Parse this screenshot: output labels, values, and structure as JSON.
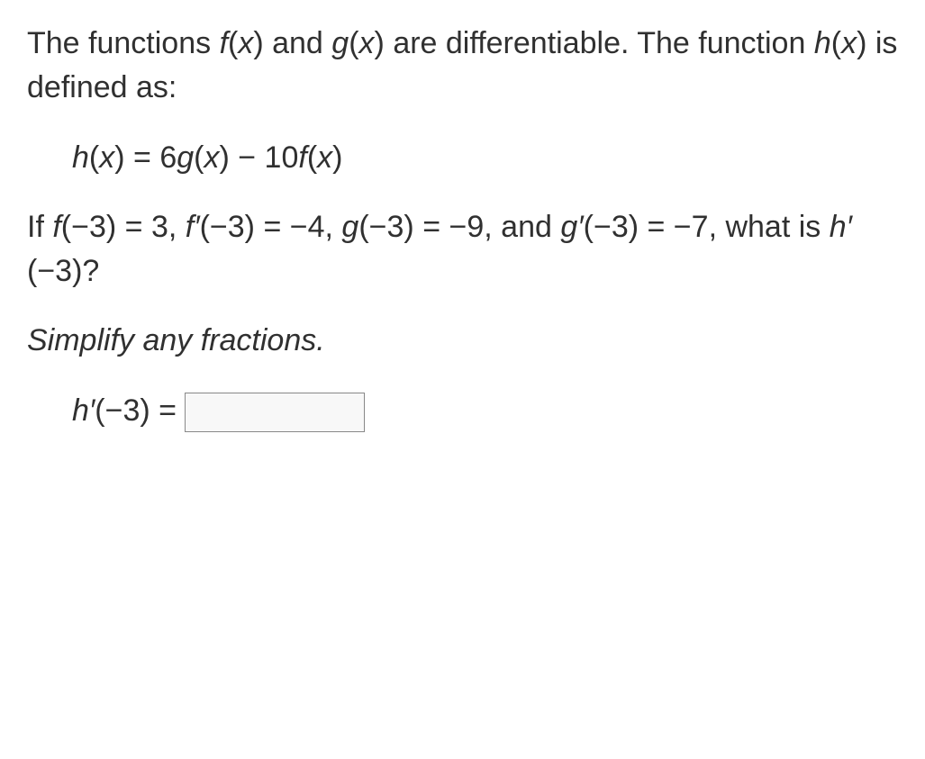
{
  "intro": {
    "line1_html": "The functions <span class=\"ital\">f</span>(<span class=\"ital\">x</span>) and <span class=\"ital\">g</span>(<span class=\"ital\">x</span>) are differentiable. The function <span class=\"ital\">h</span>(<span class=\"ital\">x</span>) is defined as:"
  },
  "definition": {
    "html": "<span class=\"ital\">h</span>(<span class=\"ital\">x</span>) = 6<span class=\"ital\">g</span>(<span class=\"ital\">x</span>) &minus; 10<span class=\"ital\">f</span>(<span class=\"ital\">x</span>)"
  },
  "given": {
    "html": "If <span class=\"ital\">f</span>(&minus;3) = 3, <span class=\"ital\">f&prime;</span>(&minus;3) = &minus;4, <span class=\"ital\">g</span>(&minus;3) = &minus;9, and <span class=\"ital\">g&prime;</span>(&minus;3) = &minus;7, what is <span class=\"ital\">h&prime;</span>(&minus;3)?"
  },
  "instruction": {
    "text": "Simplify any fractions."
  },
  "answer_prompt": {
    "html": "<span class=\"ital\">h&prime;</span>(&minus;3) ="
  },
  "answer_input": {
    "value": ""
  }
}
